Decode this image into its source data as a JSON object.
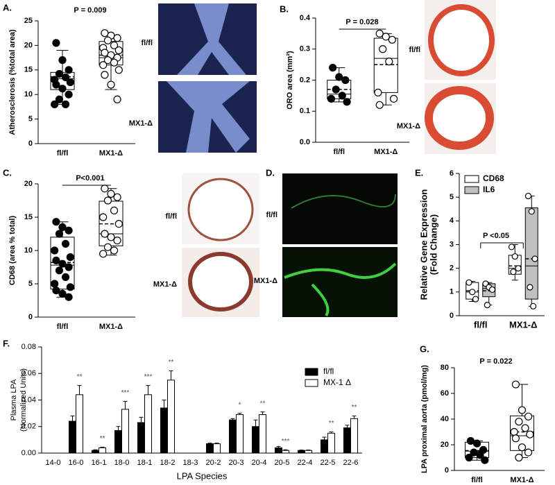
{
  "chart_data": [
    {
      "type": "box",
      "panel": "A.",
      "ylabel": "Atherosclerosis (%total area)",
      "annotation": "P = 0.009",
      "categories": [
        "fl/fl",
        "MX1-Δ"
      ],
      "colors": [
        "#000000",
        "#ffffff"
      ],
      "ylim": [
        0,
        25
      ],
      "yticks": [
        0,
        5,
        10,
        15,
        20,
        25
      ],
      "boxes": [
        {
          "min": 8,
          "q1": 11,
          "median": 13.2,
          "mean": 13.6,
          "q3": 14.5,
          "max": 19,
          "points": [
            20.5,
            17,
            15,
            14.2,
            13.5,
            13,
            12.5,
            12,
            11.2,
            10,
            9,
            8,
            8
          ]
        },
        {
          "min": 11,
          "q1": 16,
          "median": 17.5,
          "mean": 18,
          "q3": 20.8,
          "max": 22,
          "points": [
            22.5,
            22,
            21.5,
            21,
            20,
            19.5,
            19,
            18.5,
            18,
            17.5,
            17,
            16.5,
            16,
            15,
            14,
            12,
            9
          ]
        }
      ],
      "image_labels": [
        "fl/fl",
        "MX1-Δ"
      ]
    },
    {
      "type": "box",
      "panel": "B.",
      "ylabel": "ORO area (mm²)",
      "annotation": "P = 0.028",
      "categories": [
        "fl/fl",
        "MX1-Δ"
      ],
      "colors": [
        "#000000",
        "#ffffff"
      ],
      "ylim": [
        0,
        0.4
      ],
      "yticks": [
        {
          "value": 0,
          "label": "0.0"
        },
        0.1,
        0.2,
        0.3,
        0.4
      ],
      "boxes": [
        {
          "min": 0.13,
          "q1": 0.14,
          "median": 0.155,
          "mean": 0.17,
          "q3": 0.2,
          "max": 0.24,
          "points": [
            0.24,
            0.21,
            0.2,
            0.17,
            0.15,
            0.14,
            0.13
          ]
        },
        {
          "min": 0.12,
          "q1": 0.16,
          "median": 0.27,
          "mean": 0.25,
          "q3": 0.335,
          "max": 0.35,
          "points": [
            0.35,
            0.34,
            0.33,
            0.3,
            0.26,
            0.16,
            0.14,
            0.12
          ]
        }
      ],
      "image_labels": [
        "fl/fl",
        "MX1-Δ"
      ]
    },
    {
      "type": "box",
      "panel": "C.",
      "ylabel": "CD68 (area % total)",
      "annotation": "P<0.001",
      "categories": [
        "fl/fl",
        "MX1-Δ"
      ],
      "colors": [
        "#000000",
        "#ffffff"
      ],
      "ylim": [
        0,
        20
      ],
      "yticks": [
        0,
        5,
        10,
        15,
        20
      ],
      "boxes": [
        {
          "min": 3,
          "q1": 4.2,
          "median": 7.8,
          "mean": 8.2,
          "q3": 12,
          "max": 14.3,
          "points": [
            14.3,
            13.5,
            13,
            12.5,
            11,
            10,
            9,
            8.5,
            8,
            7.5,
            7,
            6,
            5,
            4.5,
            4,
            3.5,
            3
          ]
        },
        {
          "min": 9.3,
          "q1": 10.7,
          "median": 12.5,
          "mean": 14,
          "q3": 17.4,
          "max": 19.3,
          "points": [
            19.3,
            18.5,
            18,
            17.5,
            16,
            15,
            14,
            12.5,
            12,
            11.5,
            10.5,
            10,
            9.5
          ]
        }
      ],
      "image_labels": [
        "fl/fl",
        "MX1-Δ"
      ]
    },
    {
      "type": "image",
      "panel": "D.",
      "image_labels": [
        "fl/fl",
        "MX1-Δ"
      ]
    },
    {
      "type": "grouped-box",
      "panel": "E.",
      "ylabel": [
        "Relative Gene Expression",
        "(Fold Change)"
      ],
      "annotation": "P <0.05",
      "categories": [
        "fl/fl",
        "MX1-Δ"
      ],
      "ylim": [
        0,
        6
      ],
      "yticks": [
        0,
        1,
        2,
        3,
        4,
        5,
        6
      ],
      "series": [
        {
          "name": "CD68",
          "color": "#ffffff",
          "boxes": [
            {
              "min": 0.6,
              "q1": 0.7,
              "median": 1,
              "mean": 1.05,
              "q3": 1.4,
              "max": 1.45,
              "points": [
                1.4,
                1,
                0.7
              ]
            },
            {
              "min": 1.5,
              "q1": 1.75,
              "median": 2,
              "mean": 2.1,
              "q3": 2.55,
              "max": 3,
              "points": [
                2.9,
                2.5,
                2,
                1.85
              ]
            }
          ]
        },
        {
          "name": "IL6",
          "color": "#c0c0c0",
          "boxes": [
            {
              "min": 0.45,
              "q1": 0.8,
              "median": 1.15,
              "mean": 1.05,
              "q3": 1.35,
              "max": 1.4,
              "points": [
                1.35,
                1.2,
                1.1,
                0.45
              ]
            },
            {
              "min": 0.4,
              "q1": 0.7,
              "median": 2.1,
              "mean": 2.4,
              "q3": 4.55,
              "max": 5.05,
              "points": [
                5.05,
                4.4,
                2.4,
                1.2,
                0.4
              ]
            }
          ]
        }
      ]
    },
    {
      "type": "bar",
      "panel": "F.",
      "ylabel": [
        "Plasma LPA",
        "(Normalized Units)"
      ],
      "xlabel": "LPA Species",
      "categories": [
        "14-0",
        "16-0",
        "16-1",
        "18-0",
        "18-1",
        "18-2",
        "18-3",
        "20-2",
        "20-3",
        "20-4",
        "20-5",
        "22-4",
        "22-5",
        "22-6"
      ],
      "ylim": [
        0,
        0.08
      ],
      "yticks": [
        {
          "value": 0,
          "label": "0.00"
        },
        0.02,
        0.04,
        0.06,
        0.08
      ],
      "series": [
        {
          "name": "fl/fl",
          "color": "#000000",
          "values": [
            0,
            0.024,
            0.002,
            0.017,
            0.023,
            0.034,
            0,
            0.007,
            0.025,
            0.02,
            0.004,
            0.002,
            0.01,
            0.019
          ],
          "errors": [
            0,
            0.004,
            0.0005,
            0.003,
            0.004,
            0.006,
            0,
            0.0005,
            0.001,
            0.005,
            0.001,
            0.0003,
            0.002,
            0.002
          ]
        },
        {
          "name": "MX-1 Δ",
          "color": "#ffffff",
          "values": [
            0,
            0.044,
            0.004,
            0.033,
            0.044,
            0.055,
            0,
            0.007,
            0.029,
            0.029,
            0.002,
            0.002,
            0.015,
            0.026
          ],
          "errors": [
            0,
            0.007,
            0.0005,
            0.006,
            0.007,
            0.007,
            0,
            0.0005,
            0.001,
            0.002,
            0.0005,
            0.0003,
            0.001,
            0.002
          ]
        }
      ],
      "significance": [
        null,
        "**",
        "**",
        "***",
        "***",
        "**",
        null,
        null,
        "*",
        "**",
        "***",
        null,
        "**",
        "**"
      ]
    },
    {
      "type": "box",
      "panel": "G.",
      "ylabel": "LPA proximal aorta (pmol/mg)",
      "annotation": "P = 0.022",
      "categories": [
        "fl/fl",
        "MX1-Δ"
      ],
      "colors": [
        "#000000",
        "#ffffff"
      ],
      "ylim": [
        0,
        80
      ],
      "yticks": [
        0,
        20,
        40,
        60,
        80
      ],
      "boxes": [
        {
          "min": 8,
          "q1": 10,
          "median": 15,
          "mean": 15.5,
          "q3": 22,
          "max": 23,
          "points": [
            23,
            21,
            16,
            14,
            12,
            10,
            8
          ]
        },
        {
          "min": 10,
          "q1": 15.5,
          "median": 27,
          "mean": 30,
          "q3": 42.5,
          "max": 67,
          "points": [
            67,
            47,
            42,
            38,
            33,
            30,
            28,
            25,
            18,
            14,
            10
          ]
        }
      ]
    }
  ]
}
